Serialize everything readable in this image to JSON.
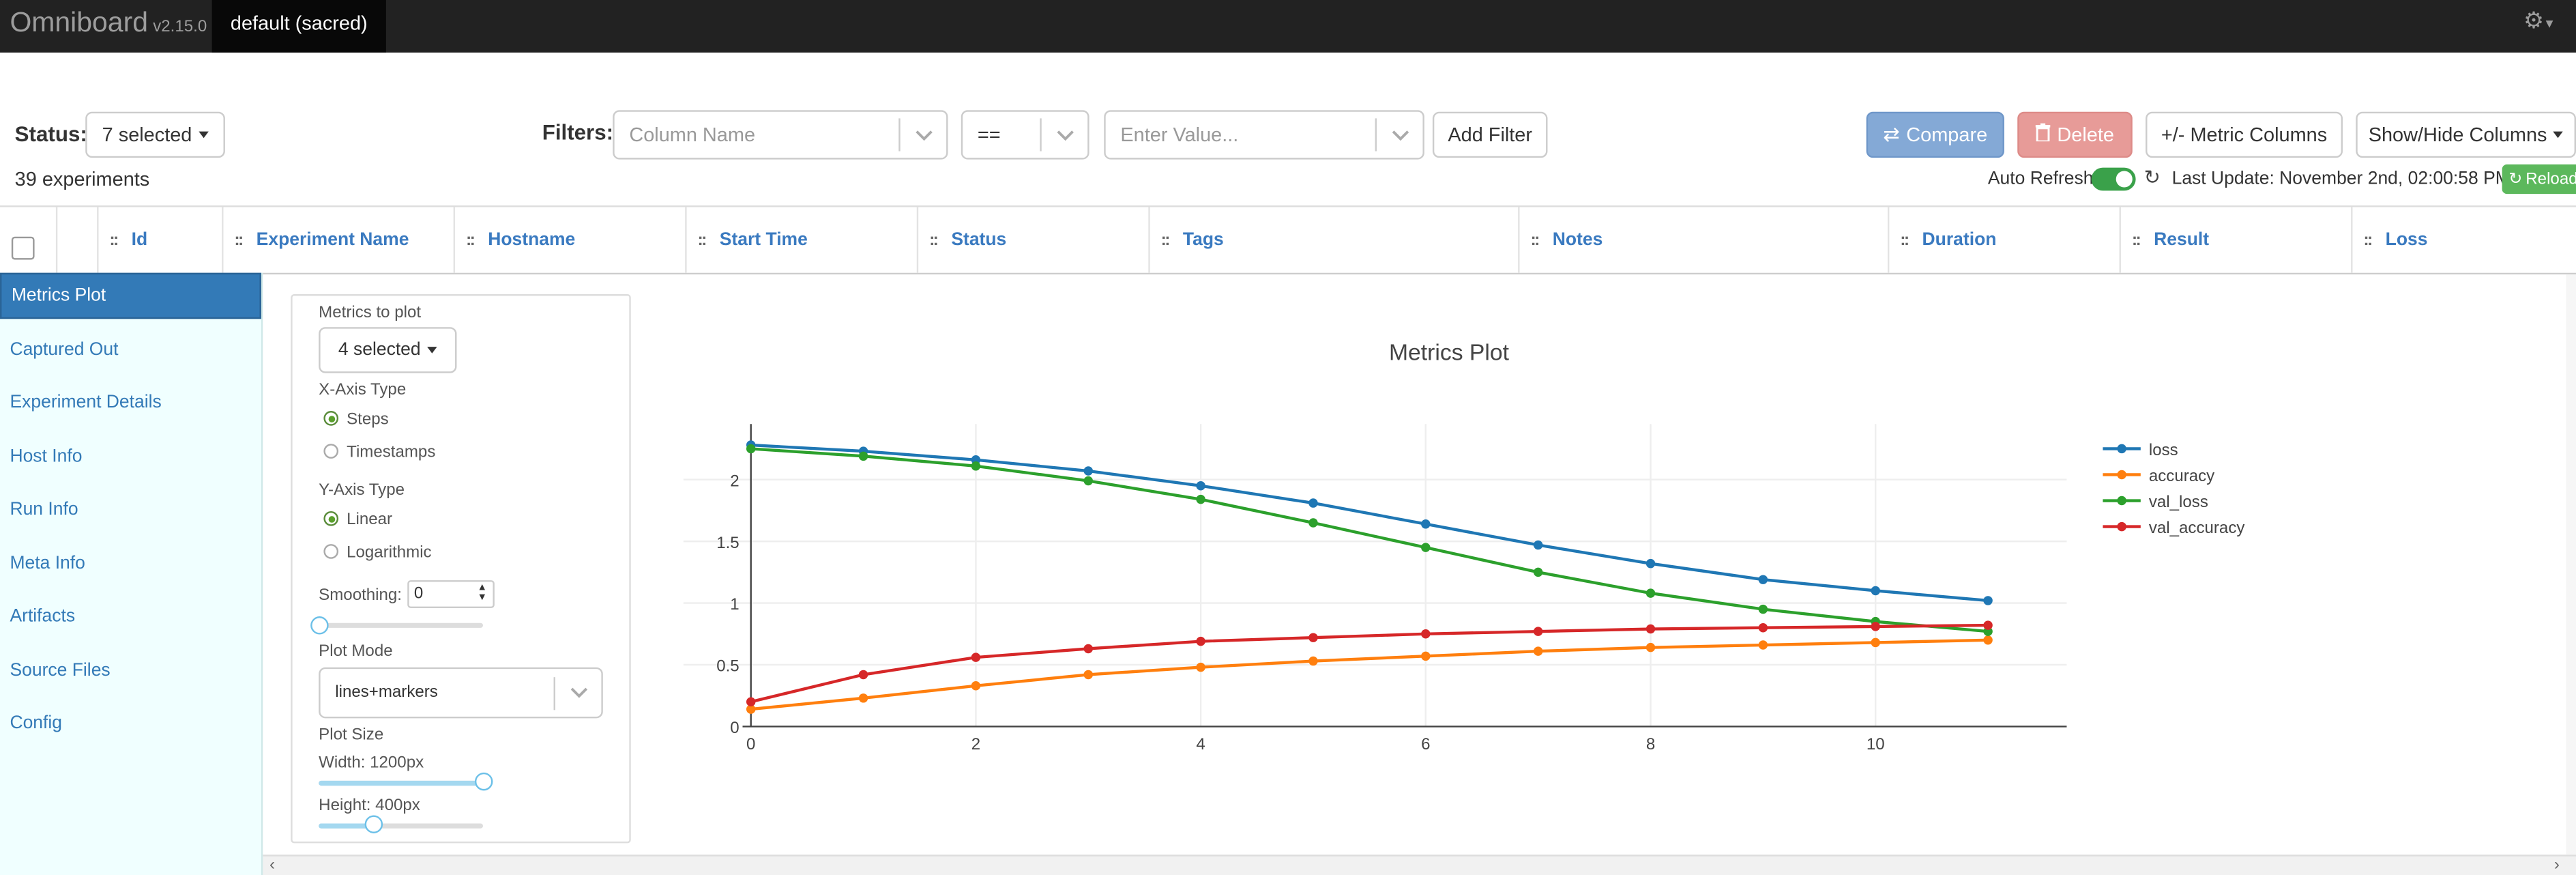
{
  "app": {
    "name": "Omniboard",
    "version": "v2.15.0",
    "db_tab": "default (sacred)"
  },
  "toolbar": {
    "status_label": "Status:",
    "status_value": "7 selected",
    "filters_label": "Filters:",
    "column_placeholder": "Column Name",
    "operator_value": "==",
    "value_placeholder": "Enter Value...",
    "add_filter": "Add Filter",
    "compare": "Compare",
    "delete": "Delete",
    "metric_columns": "+/- Metric Columns",
    "show_hide": "Show/Hide Columns",
    "experiments_count": "39 experiments",
    "auto_refresh": "Auto Refresh",
    "last_update": "Last Update: November 2nd, 02:00:58 PM",
    "reload": "Reload"
  },
  "table": {
    "columns": [
      "Id",
      "Experiment Name",
      "Hostname",
      "Start Time",
      "Status",
      "Tags",
      "Notes",
      "Duration",
      "Result",
      "Loss"
    ]
  },
  "sidebar": {
    "items": [
      "Metrics Plot",
      "Captured Out",
      "Experiment Details",
      "Host Info",
      "Run Info",
      "Meta Info",
      "Artifacts",
      "Source Files",
      "Config"
    ],
    "active": "Metrics Plot"
  },
  "controls": {
    "metrics_label": "Metrics to plot",
    "metrics_value": "4 selected",
    "x_axis_label": "X-Axis Type",
    "x_options": [
      "Steps",
      "Timestamps"
    ],
    "x_selected": "Steps",
    "y_axis_label": "Y-Axis Type",
    "y_options": [
      "Linear",
      "Logarithmic"
    ],
    "y_selected": "Linear",
    "smoothing_label": "Smoothing:",
    "smoothing_value": "0",
    "plot_mode_label": "Plot Mode",
    "plot_mode_value": "lines+markers",
    "plot_size_label": "Plot Size",
    "width_label": "Width: 1200px",
    "height_label": "Height: 400px",
    "width_fraction": 1.0,
    "height_fraction": 0.33,
    "smoothing_fraction": 0.0
  },
  "colors": {
    "accent": "#337ab7",
    "loss": "#1f77b4",
    "accuracy": "#ff7f0e",
    "val_loss": "#2ca02c",
    "val_accuracy": "#d62728"
  },
  "chart_data": {
    "type": "line",
    "title": "Metrics Plot",
    "xlabel": "",
    "ylabel": "",
    "x": [
      0,
      1,
      2,
      3,
      4,
      5,
      6,
      7,
      8,
      9,
      10,
      11
    ],
    "xlim": [
      -0.6,
      11.7
    ],
    "ylim": [
      0,
      2.45
    ],
    "x_ticks": [
      0,
      2,
      4,
      6,
      8,
      10
    ],
    "y_ticks": [
      0,
      0.5,
      1,
      1.5,
      2
    ],
    "y_tick_labels": [
      "0",
      "0.5",
      "1",
      "1.5",
      "2"
    ],
    "grid": true,
    "legend": "top-right",
    "series": [
      {
        "name": "loss",
        "color": "#1f77b4",
        "values": [
          2.28,
          2.23,
          2.16,
          2.07,
          1.95,
          1.81,
          1.64,
          1.47,
          1.32,
          1.19,
          1.1,
          1.02
        ]
      },
      {
        "name": "accuracy",
        "color": "#ff7f0e",
        "values": [
          0.14,
          0.23,
          0.33,
          0.42,
          0.48,
          0.53,
          0.57,
          0.61,
          0.64,
          0.66,
          0.68,
          0.7
        ]
      },
      {
        "name": "val_loss",
        "color": "#2ca02c",
        "values": [
          2.25,
          2.19,
          2.11,
          1.99,
          1.84,
          1.65,
          1.45,
          1.25,
          1.08,
          0.95,
          0.85,
          0.77
        ]
      },
      {
        "name": "val_accuracy",
        "color": "#d62728",
        "values": [
          0.2,
          0.42,
          0.56,
          0.63,
          0.69,
          0.72,
          0.75,
          0.77,
          0.79,
          0.8,
          0.81,
          0.82
        ]
      }
    ]
  }
}
